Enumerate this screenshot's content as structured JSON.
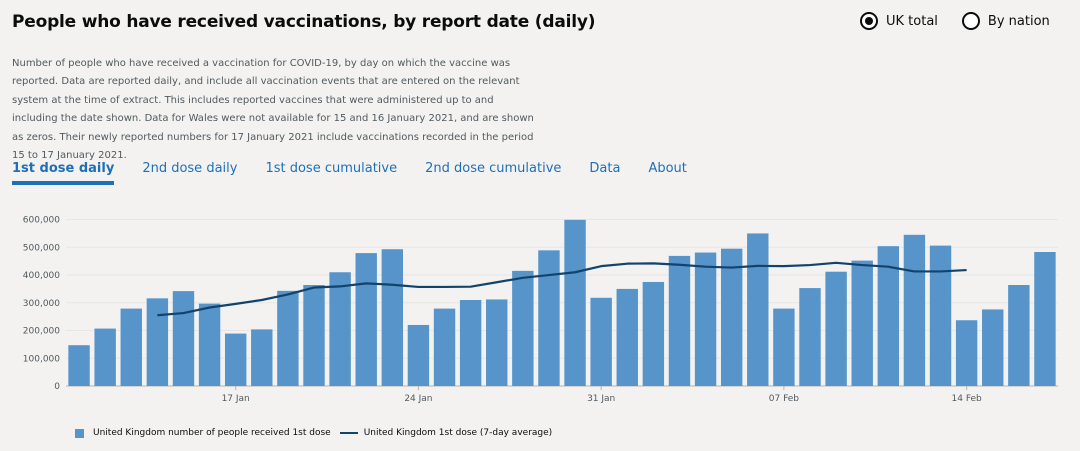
{
  "title": "People who have received vaccinations, by report date (daily)",
  "radios": [
    {
      "label": "UK total",
      "checked": true
    },
    {
      "label": "By nation",
      "checked": false
    }
  ],
  "description": "Number of people who have received a vaccination for COVID-19, by day on which the vaccine was reported. Data are reported daily, and include all vaccination events that are entered on the relevant system at the time of extract. This includes reported vaccines that were administered up to and including the date shown. Data for Wales were not available for 15 and 16 January 2021, and are shown as zeros. Their newly reported numbers for 17 January 2021 include vaccinations recorded in the period 15 to 17 January 2021.",
  "tabs": [
    {
      "label": "1st dose daily",
      "active": true
    },
    {
      "label": "2nd dose daily",
      "active": false
    },
    {
      "label": "1st dose cumulative",
      "active": false
    },
    {
      "label": "2nd dose cumulative",
      "active": false
    },
    {
      "label": "Data",
      "active": false
    },
    {
      "label": "About",
      "active": false
    }
  ],
  "colors": {
    "bar": "#5694ca",
    "line": "#12436d",
    "link": "#1d70b8",
    "grid": "#e6e6e6"
  },
  "chart_data": {
    "type": "bar",
    "x": [
      "11 Jan",
      "12 Jan",
      "13 Jan",
      "14 Jan",
      "15 Jan",
      "16 Jan",
      "17 Jan",
      "18 Jan",
      "19 Jan",
      "20 Jan",
      "21 Jan",
      "22 Jan",
      "23 Jan",
      "24 Jan",
      "25 Jan",
      "26 Jan",
      "27 Jan",
      "28 Jan",
      "29 Jan",
      "30 Jan",
      "31 Jan",
      "01 Feb",
      "02 Feb",
      "03 Feb",
      "04 Feb",
      "05 Feb",
      "06 Feb",
      "07 Feb",
      "08 Feb",
      "09 Feb",
      "10 Feb",
      "11 Feb",
      "12 Feb",
      "13 Feb",
      "14 Feb",
      "15 Feb",
      "16 Feb",
      "17 Feb"
    ],
    "x_tick_labels": [
      {
        "index": 6,
        "label": "17 Jan"
      },
      {
        "index": 13,
        "label": "24 Jan"
      },
      {
        "index": 20,
        "label": "31 Jan"
      },
      {
        "index": 27,
        "label": "07 Feb"
      },
      {
        "index": 34,
        "label": "14 Feb"
      }
    ],
    "series": [
      {
        "name": "United Kingdom number of people received 1st dose",
        "kind": "bar",
        "values": [
          147000,
          207000,
          279000,
          316000,
          342000,
          297000,
          189000,
          204000,
          343000,
          364000,
          410000,
          479000,
          493000,
          220000,
          279000,
          310000,
          312000,
          415000,
          489000,
          599000,
          318000,
          350000,
          375000,
          469000,
          481000,
          495000,
          550000,
          279000,
          353000,
          412000,
          452000,
          504000,
          545000,
          506000,
          237000,
          276000,
          364000,
          483000
        ]
      },
      {
        "name": "United Kingdom 1st dose (7-day average)",
        "kind": "line",
        "values": [
          null,
          null,
          null,
          255000,
          263000,
          283000,
          296000,
          310000,
          330000,
          355000,
          359000,
          370000,
          365000,
          357000,
          357000,
          358000,
          374000,
          390000,
          400000,
          410000,
          432000,
          441000,
          442000,
          437000,
          430000,
          427000,
          433000,
          432000,
          436000,
          444000,
          436000,
          430000,
          413000,
          413000,
          418000,
          null,
          null,
          null
        ]
      }
    ],
    "ylim": [
      0,
      620000
    ],
    "yticks": [
      0,
      100000,
      200000,
      300000,
      400000,
      500000,
      600000
    ],
    "ytick_labels": [
      "0",
      "100,000",
      "200,000",
      "300,000",
      "400,000",
      "500,000",
      "600,000"
    ],
    "grid": true,
    "legend": "bottom-left"
  }
}
